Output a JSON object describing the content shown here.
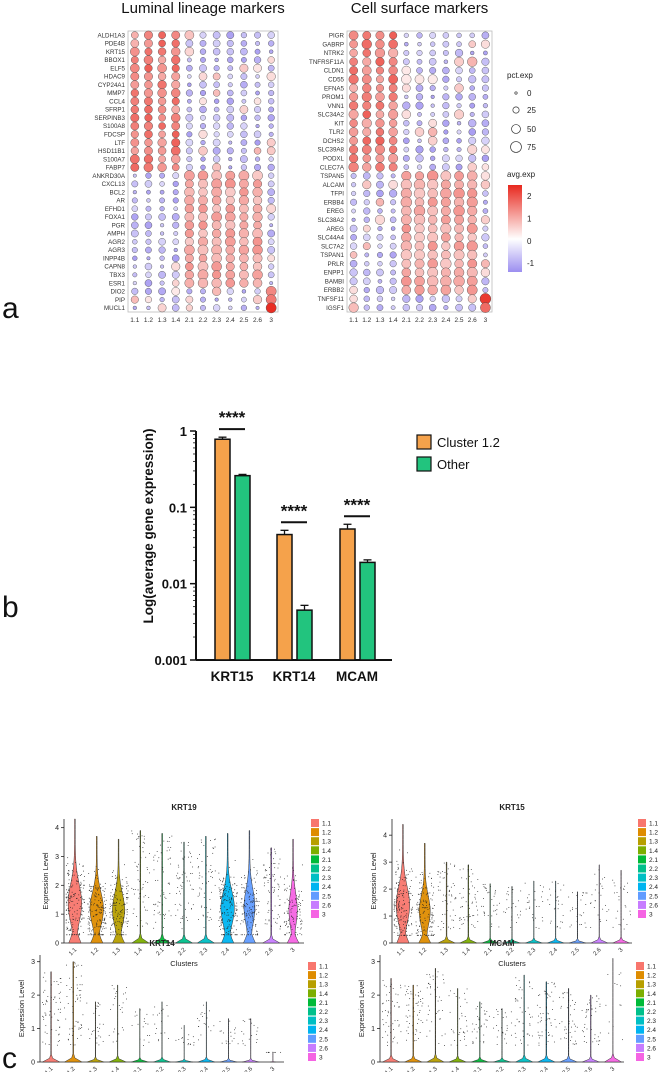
{
  "panel_labels": {
    "a": "a",
    "b": "b",
    "c": "c"
  },
  "colors": {
    "low": "#9b8ef0",
    "mid": "#ffffff",
    "high": "#e8281e",
    "orange": "#f5a24b",
    "green": "#22c47e",
    "cluster_colors": [
      "#f8766d",
      "#de8c00",
      "#b79f00",
      "#7cae00",
      "#00ba38",
      "#00c08b",
      "#00bfc4",
      "#00b4f0",
      "#619cff",
      "#c77cff",
      "#f564e3"
    ]
  },
  "chart_data": [
    {
      "type": "dotplot",
      "title": "Luminal lineage markers",
      "clusters": [
        "1.1",
        "1.2",
        "1.3",
        "1.4",
        "2.1",
        "2.2",
        "2.3",
        "2.4",
        "2.5",
        "2.6",
        "3"
      ],
      "genes": [
        "ALDH1A3",
        "PDE4B",
        "KRT15",
        "BBOX1",
        "ELF5",
        "HDAC9",
        "CYP24A1",
        "MMP7",
        "CCL4",
        "SFRP1",
        "SERPINB3",
        "S100A8",
        "FDCSP",
        "LTF",
        "HSD11B1",
        "S100A7",
        "FABP7",
        "ANKRD30A",
        "CXCL13",
        "BCL2",
        "AR",
        "EFHD1",
        "FOXA1",
        "PGR",
        "AMPH",
        "AGR2",
        "AGR3",
        "INPP4B",
        "CAPN8",
        "TBX3",
        "ESR1",
        "DIO2",
        "PIP",
        "MUCL1"
      ],
      "groups": [
        {
          "genes": [
            0,
            17
          ],
          "cluster": [
            0,
            4
          ],
          "avg": 1.5,
          "pct": 50
        },
        {
          "genes": [
            17,
            31
          ],
          "cluster": [
            4,
            10
          ],
          "avg": 1.0,
          "pct": 65
        },
        {
          "genes": [
            31,
            34
          ],
          "cluster": [
            10,
            11
          ],
          "avg": 2.2,
          "pct": 80
        }
      ]
    },
    {
      "type": "dotplot",
      "title": "Cell surface markers",
      "clusters": [
        "1.1",
        "1.2",
        "1.3",
        "1.4",
        "2.1",
        "2.2",
        "2.3",
        "2.4",
        "2.5",
        "2.6",
        "3"
      ],
      "genes": [
        "PIGR",
        "GABRP",
        "NTRK2",
        "TNFRSF11A",
        "CLDN1",
        "CD55",
        "EFNA5",
        "PROM1",
        "VNN1",
        "SLC34A2",
        "KIT",
        "TLR2",
        "DCHS2",
        "SLC39A8",
        "PODXL",
        "CLEC7A",
        "TSPAN5",
        "ALCAM",
        "TFPI",
        "ERBB4",
        "EREG",
        "SLC38A2",
        "AREG",
        "SLC44A4",
        "SLC7A2",
        "TSPAN1",
        "PRLR",
        "ENPP1",
        "BAMBI",
        "ERBB2",
        "TNFSF11",
        "IGSF1"
      ],
      "groups": [
        {
          "genes": [
            0,
            16
          ],
          "cluster": [
            0,
            4
          ],
          "avg": 1.5,
          "pct": 50
        },
        {
          "genes": [
            16,
            30
          ],
          "cluster": [
            4,
            10
          ],
          "avg": 1.0,
          "pct": 65
        },
        {
          "genes": [
            30,
            32
          ],
          "cluster": [
            10,
            11
          ],
          "avg": 2.2,
          "pct": 80
        }
      ],
      "legend": {
        "size_title": "pct.exp",
        "size_values": [
          0,
          25,
          50,
          75
        ],
        "color_title": "avg.exp",
        "color_ticks": [
          2,
          1,
          0,
          -1
        ],
        "color_range": [
          -1.4,
          2.5
        ]
      }
    },
    {
      "type": "bar",
      "categories": [
        "KRT15",
        "KRT14",
        "MCAM"
      ],
      "series": [
        {
          "name": "Cluster 1.2",
          "values": [
            0.78,
            0.044,
            0.052
          ],
          "errors": [
            0.05,
            0.006,
            0.008
          ]
        },
        {
          "name": "Other",
          "values": [
            0.26,
            0.0045,
            0.019
          ],
          "errors": [
            0.01,
            0.0007,
            0.0015
          ]
        }
      ],
      "significance": [
        "****",
        "****",
        "****"
      ],
      "ylabel": "Log(average gene expression)",
      "yscale": "log",
      "ylim": [
        0.001,
        1
      ],
      "yticks": [
        "1",
        "0.1",
        "0.01",
        "0.001"
      ],
      "legend_position": "right"
    },
    {
      "type": "violin",
      "title": "KRT19",
      "xlabel": "Clusters",
      "ylabel": "Expression Level",
      "categories": [
        "1.1",
        "1.2",
        "1.3",
        "1.4",
        "2.1",
        "2.2",
        "2.3",
        "2.4",
        "2.5",
        "2.6",
        "3"
      ],
      "max_values": [
        4.3,
        3.7,
        3.6,
        3.9,
        3.8,
        3.5,
        3.7,
        3.8,
        3.9,
        3.3,
        3.6
      ],
      "density": [
        1.0,
        1.0,
        0.9,
        0.3,
        0.3,
        0.3,
        0.3,
        1.0,
        0.8,
        0.4,
        0.6
      ],
      "ylim": [
        0,
        4.3
      ],
      "yticks": [
        "0",
        "1",
        "2",
        "3",
        "4"
      ]
    },
    {
      "type": "violin",
      "title": "KRT15",
      "xlabel": "Clusters",
      "ylabel": "Expression Level",
      "categories": [
        "1.1",
        "1.2",
        "1.3",
        "1.4",
        "2.1",
        "2.2",
        "2.3",
        "2.4",
        "2.5",
        "2.6",
        "3"
      ],
      "max_values": [
        4.4,
        3.7,
        3.0,
        2.9,
        2.2,
        2.1,
        2.3,
        2.3,
        1.9,
        2.9,
        2.7
      ],
      "density": [
        1.0,
        0.8,
        0.3,
        0.3,
        0.15,
        0.1,
        0.1,
        0.1,
        0.1,
        0.1,
        0.1
      ],
      "ylim": [
        0,
        4.6
      ],
      "yticks": [
        "0",
        "1",
        "2",
        "3",
        "4"
      ]
    },
    {
      "type": "violin",
      "title": "KRT14",
      "xlabel": "Clusters",
      "ylabel": "Expression Level",
      "categories": [
        "1.1",
        "1.2",
        "1.3",
        "1.4",
        "2.1",
        "2.2",
        "2.3",
        "2.4",
        "2.5",
        "2.6",
        "3"
      ],
      "max_values": [
        2.7,
        3.0,
        1.8,
        2.3,
        1.6,
        1.8,
        1.1,
        1.8,
        1.3,
        1.3,
        0.3
      ],
      "density": [
        0.3,
        0.3,
        0.1,
        0.1,
        0.05,
        0.05,
        0.03,
        0.05,
        0.05,
        0.05,
        0.0
      ],
      "ylim": [
        0,
        3.2
      ],
      "yticks": [
        "0",
        "1",
        "2",
        "3"
      ]
    },
    {
      "type": "violin",
      "title": "MCAM",
      "xlabel": "Clusters",
      "ylabel": "Expression Level",
      "categories": [
        "1.1",
        "1.2",
        "1.3",
        "1.4",
        "2.1",
        "2.2",
        "2.3",
        "2.4",
        "2.5",
        "2.6",
        "3"
      ],
      "max_values": [
        2.5,
        2.3,
        2.8,
        2.2,
        1.8,
        1.6,
        2.6,
        2.4,
        2.2,
        2.0,
        3.1
      ],
      "density": [
        0.25,
        0.3,
        0.2,
        0.15,
        0.15,
        0.1,
        0.2,
        0.3,
        0.2,
        0.2,
        0.02
      ],
      "ylim": [
        0,
        3.2
      ],
      "yticks": [
        "0",
        "1",
        "2",
        "3"
      ]
    }
  ]
}
